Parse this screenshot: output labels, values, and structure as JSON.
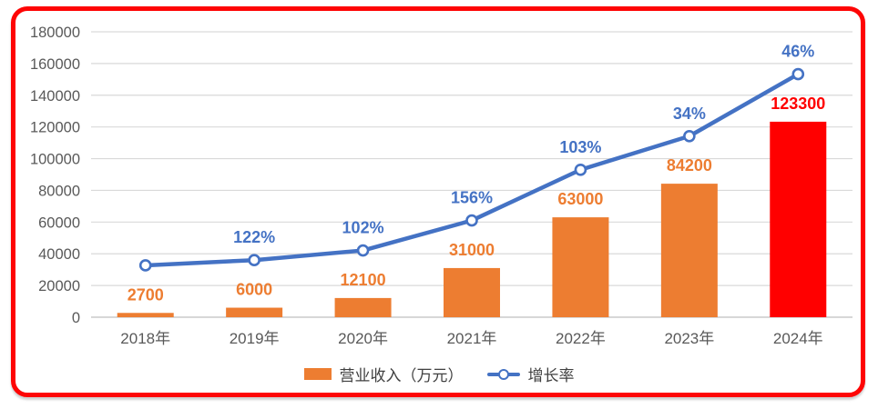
{
  "frame": {
    "border_color": "#FE0505",
    "background": "#FFFFFF"
  },
  "chart_data": {
    "type": "bar+line combo",
    "categories": [
      "2018年",
      "2019年",
      "2020年",
      "2021年",
      "2022年",
      "2023年",
      "2024年"
    ],
    "series": [
      {
        "name": "营业收入（万元）",
        "type": "bar",
        "values": [
          2700,
          6000,
          12100,
          31000,
          63000,
          84200,
          123300
        ],
        "data_labels": [
          "2700",
          "6000",
          "12100",
          "31000",
          "63000",
          "84200",
          "123300"
        ],
        "bar_colors": [
          "#ED7D31",
          "#ED7D31",
          "#ED7D31",
          "#ED7D31",
          "#ED7D31",
          "#ED7D31",
          "#FF0000"
        ],
        "label_colors": [
          "#ED7D31",
          "#ED7D31",
          "#ED7D31",
          "#ED7D31",
          "#ED7D31",
          "#ED7D31",
          "#FF0000"
        ]
      },
      {
        "name": "增长率",
        "type": "line",
        "values_percent": [
          null,
          122,
          102,
          156,
          103,
          34,
          46
        ],
        "data_labels": [
          null,
          "122%",
          "102%",
          "156%",
          "103%",
          "34%",
          "46%"
        ],
        "plotted_values_primary_axis": [
          32700,
          36000,
          42100,
          61000,
          93000,
          114200,
          153300
        ],
        "line_color": "#4472C4",
        "marker": "circle-white-fill"
      }
    ],
    "y_axis": {
      "min": 0,
      "max": 180000,
      "tick_interval": 20000,
      "tick_labels": [
        "0",
        "20000",
        "40000",
        "60000",
        "80000",
        "100000",
        "120000",
        "140000",
        "160000",
        "180000"
      ]
    },
    "grid": true,
    "legend_position": "bottom",
    "axis_text_color": "#595959",
    "gridline_color": "#D9D9D9",
    "zero_line_color": "#BFBFBF"
  },
  "legend": {
    "items": [
      {
        "label": "营业收入（万元）",
        "marker": "bar-swatch",
        "color": "#ED7D31"
      },
      {
        "label": "增长率",
        "marker": "line-circle",
        "color": "#4472C4"
      }
    ]
  }
}
